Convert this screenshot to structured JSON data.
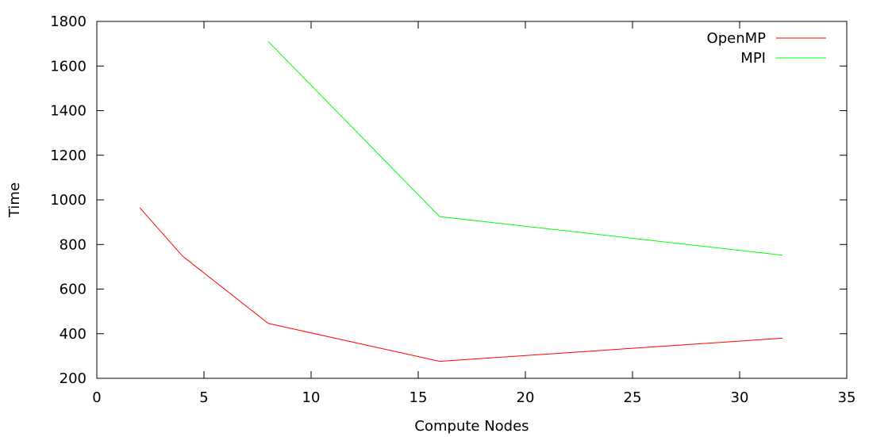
{
  "chart_data": {
    "type": "line",
    "title": "",
    "xlabel": "Compute Nodes",
    "ylabel": "Time",
    "xlim": [
      0,
      35
    ],
    "ylim": [
      200,
      1800
    ],
    "xticks": [
      0,
      5,
      10,
      15,
      20,
      25,
      30,
      35
    ],
    "yticks": [
      200,
      400,
      600,
      800,
      1000,
      1200,
      1400,
      1600,
      1800
    ],
    "grid": false,
    "legend_position": "top-right",
    "series": [
      {
        "name": "OpenMP",
        "color": "#ff0000",
        "x": [
          2,
          4,
          8,
          16,
          32
        ],
        "y": [
          965,
          748,
          446,
          276,
          380
        ]
      },
      {
        "name": "MPI",
        "color": "#00ff00",
        "x": [
          8,
          16,
          32
        ],
        "y": [
          1710,
          925,
          752
        ]
      }
    ]
  }
}
